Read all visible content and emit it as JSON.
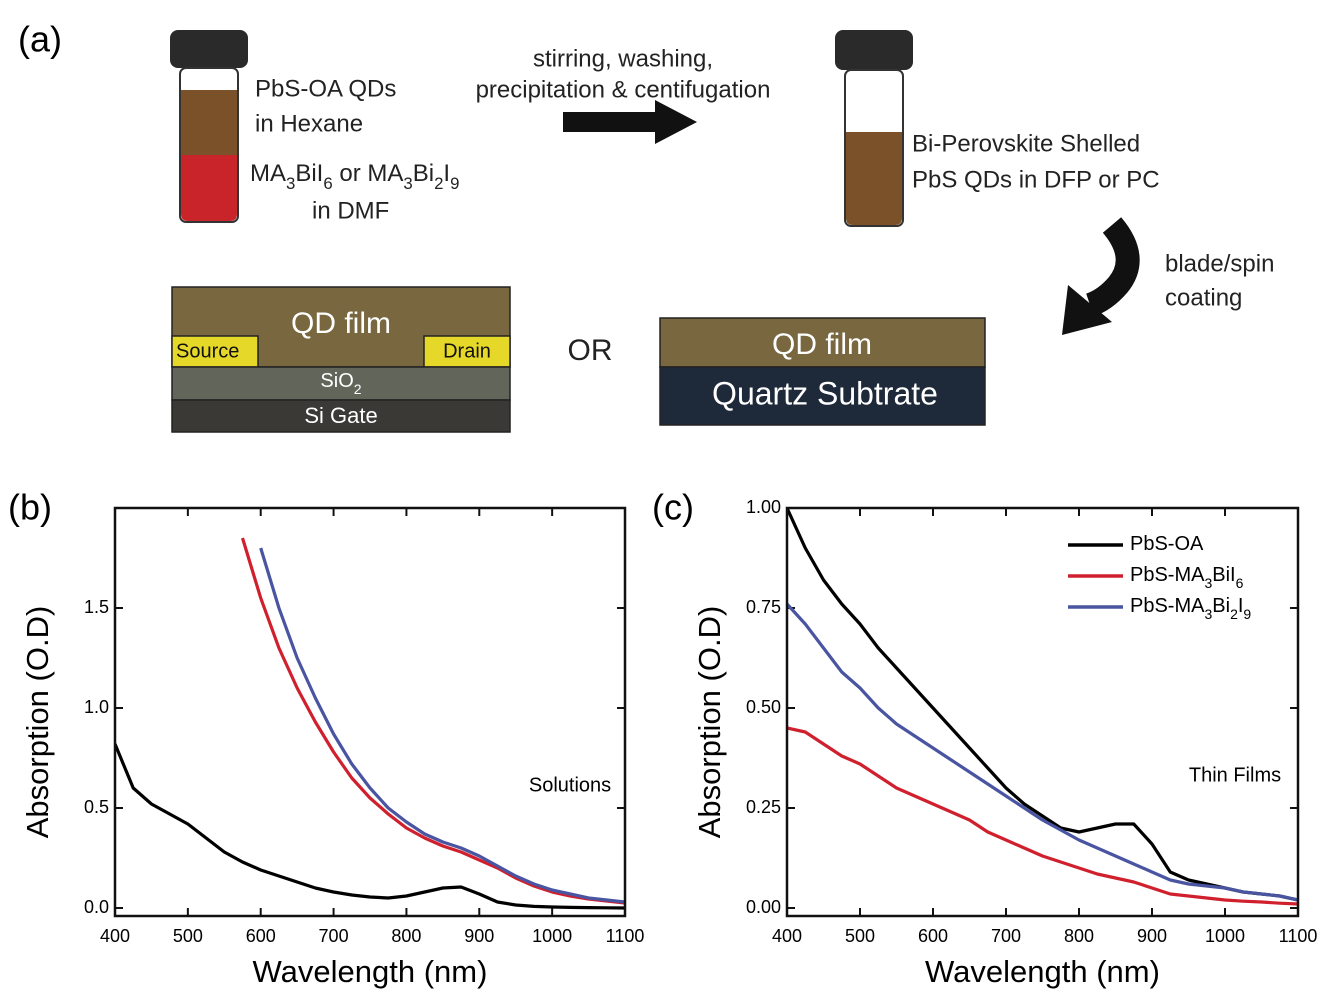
{
  "panel_labels": [
    "(a)",
    "(b)",
    "(c)"
  ],
  "diagram": {
    "vial_1": {
      "upper": [
        "PbS-OA QDs",
        "in Hexane"
      ],
      "lower": [
        "MA3BiI6 or MA3Bi2I9",
        "in DMF"
      ]
    },
    "process": [
      "stirring, washing,",
      "precipitation & centifugation"
    ],
    "vial_2": [
      "Bi-Perovskite Shelled",
      "PbS QDs in DFP or PC"
    ],
    "coating": [
      "blade/spin",
      "coating"
    ],
    "device": {
      "film": "QD film",
      "source": "Source",
      "drain": "Drain",
      "oxide": "SiO2",
      "gate": "Si Gate"
    },
    "or": "OR",
    "substrate_stack": {
      "film": "QD film",
      "substrate": "Quartz Subtrate"
    }
  },
  "chart_data": [
    {
      "type": "line",
      "xlabel": "Wavelength (nm)",
      "ylabel": "Absorption (O.D)",
      "annotation": "Solutions",
      "x": [
        400,
        425,
        450,
        475,
        500,
        525,
        550,
        575,
        600,
        625,
        650,
        675,
        700,
        725,
        750,
        775,
        800,
        825,
        850,
        875,
        900,
        925,
        950,
        975,
        1000,
        1025,
        1050,
        1075,
        1100
      ],
      "series": [
        {
          "color": "#000000",
          "values": [
            0.82,
            0.6,
            0.52,
            0.47,
            0.42,
            0.35,
            0.28,
            0.23,
            0.19,
            0.16,
            0.13,
            0.1,
            0.08,
            0.065,
            0.055,
            0.05,
            0.06,
            0.08,
            0.1,
            0.105,
            0.07,
            0.03,
            0.015,
            0.008,
            0.005,
            0.003,
            0.002,
            0.001,
            0.0
          ]
        },
        {
          "color": "#d0202e",
          "values": [
            null,
            null,
            null,
            null,
            null,
            null,
            null,
            1.85,
            1.55,
            1.3,
            1.1,
            0.93,
            0.78,
            0.65,
            0.55,
            0.47,
            0.4,
            0.35,
            0.31,
            0.28,
            0.24,
            0.2,
            0.15,
            0.11,
            0.08,
            0.06,
            0.045,
            0.035,
            0.025
          ]
        },
        {
          "color": "#4a55a2",
          "values": [
            null,
            null,
            null,
            null,
            null,
            null,
            null,
            null,
            1.8,
            1.5,
            1.25,
            1.05,
            0.87,
            0.72,
            0.6,
            0.5,
            0.43,
            0.37,
            0.33,
            0.3,
            0.26,
            0.21,
            0.16,
            0.12,
            0.09,
            0.07,
            0.05,
            0.04,
            0.03
          ]
        }
      ],
      "xlim": [
        400,
        1100
      ],
      "xticks": [
        400,
        500,
        600,
        700,
        800,
        900,
        1000,
        1100
      ],
      "ylim": [
        -0.04,
        2.0
      ],
      "yticks": [
        {
          "value": 0,
          "label": "0.0"
        },
        0.5,
        {
          "value": 1,
          "label": "1.0"
        },
        1.5
      ]
    },
    {
      "type": "line",
      "xlabel": "Wavelength (nm)",
      "ylabel": "Absorption (O.D)",
      "annotation": "Thin Films",
      "legend": "upper right",
      "x": [
        400,
        425,
        450,
        475,
        500,
        525,
        550,
        575,
        600,
        625,
        650,
        675,
        700,
        725,
        750,
        775,
        800,
        825,
        850,
        875,
        900,
        925,
        950,
        975,
        1000,
        1025,
        1050,
        1075,
        1100
      ],
      "series": [
        {
          "name": "PbS-OA",
          "color": "#000000",
          "values": [
            1.0,
            0.9,
            0.82,
            0.76,
            0.71,
            0.65,
            0.6,
            0.55,
            0.5,
            0.45,
            0.4,
            0.35,
            0.3,
            0.26,
            0.23,
            0.2,
            0.19,
            0.2,
            0.21,
            0.21,
            0.16,
            0.09,
            0.07,
            0.06,
            0.05,
            0.04,
            0.035,
            0.03,
            0.02
          ]
        },
        {
          "name": "PbS-MA3BiI6",
          "color": "#d0202e",
          "values": [
            0.45,
            0.44,
            0.41,
            0.38,
            0.36,
            0.33,
            0.3,
            0.28,
            0.26,
            0.24,
            0.22,
            0.19,
            0.17,
            0.15,
            0.13,
            0.115,
            0.1,
            0.085,
            0.075,
            0.065,
            0.05,
            0.035,
            0.03,
            0.025,
            0.02,
            0.017,
            0.015,
            0.012,
            0.01
          ]
        },
        {
          "name": "PbS-MA3Bi2I9",
          "color": "#4a55a2",
          "values": [
            0.76,
            0.71,
            0.65,
            0.59,
            0.55,
            0.5,
            0.46,
            0.43,
            0.4,
            0.37,
            0.34,
            0.31,
            0.28,
            0.25,
            0.22,
            0.195,
            0.17,
            0.15,
            0.13,
            0.11,
            0.09,
            0.07,
            0.06,
            0.055,
            0.05,
            0.04,
            0.035,
            0.03,
            0.02
          ]
        }
      ],
      "xlim": [
        400,
        1100
      ],
      "xticks": [
        400,
        500,
        600,
        700,
        800,
        900,
        1000,
        1100
      ],
      "ylim": [
        -0.02,
        1.0
      ],
      "yticks": [
        {
          "value": 0,
          "label": "0.00"
        },
        0.25,
        {
          "value": 0.5,
          "label": "0.50"
        },
        0.75,
        {
          "value": 1,
          "label": "1.00"
        }
      ]
    }
  ]
}
